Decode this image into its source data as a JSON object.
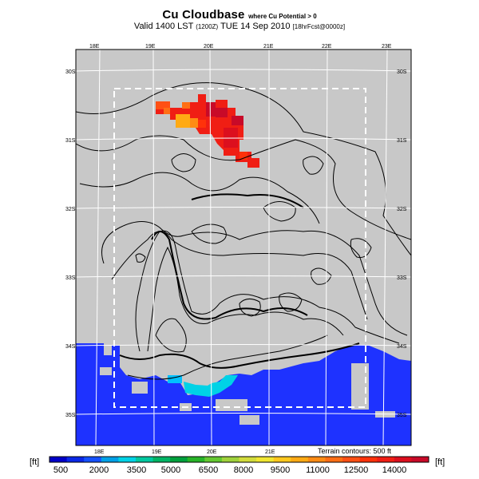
{
  "title": {
    "main": "Cu Cloudbase",
    "note": "where Cu Potential > 0"
  },
  "subtitle": {
    "valid": "Valid 1400 LST",
    "code": "(1200Z)",
    "date": "TUE 14 Sep 2010",
    "forecast": "[18hrFcst@0000z]"
  },
  "map": {
    "lon_labels_top": [
      "18E",
      "19E",
      "20E",
      "21E",
      "22E",
      "23E"
    ],
    "lon_labels_bottom": [
      "18E",
      "19E",
      "20E",
      "21E"
    ],
    "lat_labels_left": [
      "30S",
      "31S",
      "32S",
      "33S",
      "34S",
      "35S"
    ],
    "lat_labels_right": [
      "30S",
      "31S",
      "32S",
      "33S",
      "34S",
      "35S"
    ],
    "contour_note": "Terrain contours: 500 ft"
  },
  "colorbar": {
    "unit_left": "[ft]",
    "unit_right": "[ft]",
    "ticks": [
      "500",
      "2000",
      "3500",
      "5000",
      "6500",
      "8000",
      "9500",
      "11000",
      "12500",
      "14000"
    ],
    "colors": [
      "#0000c8",
      "#0a28e6",
      "#1450ff",
      "#00a0e6",
      "#00d2e6",
      "#00c8a0",
      "#00b464",
      "#00a03c",
      "#28b428",
      "#64c832",
      "#a0d23c",
      "#d2dc3c",
      "#f0e632",
      "#ffc81e",
      "#ffaa14",
      "#ff8c14",
      "#ff6e14",
      "#ff5014",
      "#ff320a",
      "#f01e14",
      "#dc0f1e",
      "#c80a28"
    ]
  },
  "colors": {
    "land": "#c8c8c8",
    "ocean_cloud": "#1e32ff",
    "grid": "#ffffff"
  }
}
